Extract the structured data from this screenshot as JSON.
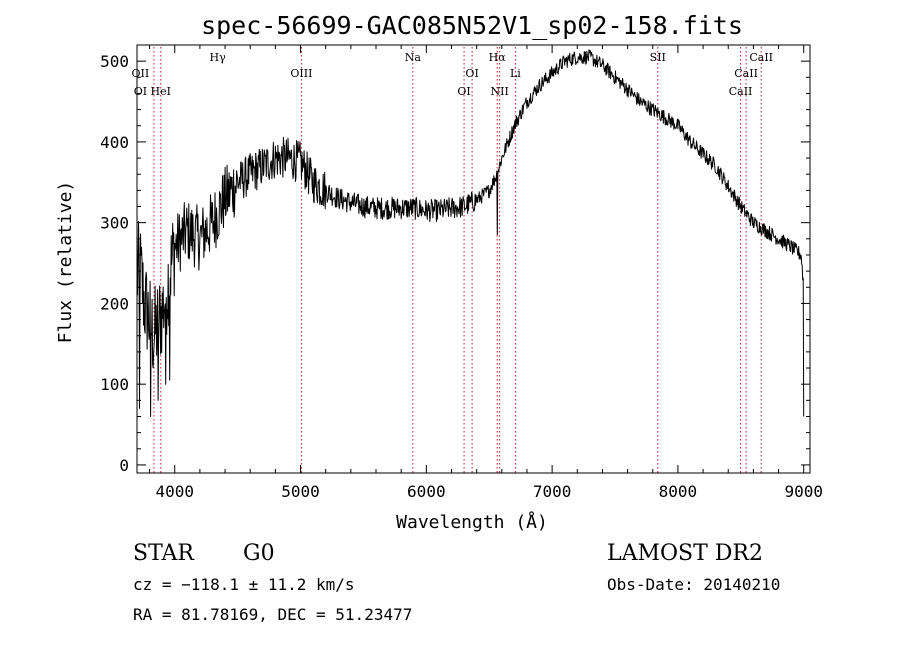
{
  "chart_data": {
    "type": "line",
    "title": "spec-56699-GAC085N52V1_sp02-158.fits",
    "xlabel": "Wavelength (Å)",
    "ylabel": "Flux (relative)",
    "xlim": [
      3700,
      9050
    ],
    "ylim": [
      -10,
      520
    ],
    "xticks": [
      4000,
      5000,
      6000,
      7000,
      8000,
      9000
    ],
    "yticks": [
      0,
      100,
      200,
      300,
      400,
      500
    ],
    "grid": false,
    "line_color": "#000000",
    "marker_color": "#b22222",
    "spectrum_anchors": {
      "x": [
        3700,
        3720,
        3760,
        3800,
        3830,
        3860,
        3900,
        3950,
        4000,
        4100,
        4200,
        4300,
        4400,
        4500,
        4600,
        4700,
        4800,
        4900,
        5000,
        5100,
        5200,
        5300,
        5400,
        5500,
        5600,
        5700,
        5800,
        5900,
        6000,
        6100,
        6200,
        6300,
        6400,
        6500,
        6560,
        6600,
        6650,
        6700,
        6800,
        6900,
        7000,
        7100,
        7200,
        7300,
        7400,
        7500,
        7600,
        7700,
        7800,
        7900,
        8000,
        8100,
        8200,
        8300,
        8400,
        8500,
        8600,
        8700,
        8800,
        8900,
        8980,
        9000
      ],
      "y": [
        230,
        250,
        200,
        180,
        160,
        170,
        190,
        230,
        270,
        290,
        280,
        300,
        330,
        350,
        360,
        370,
        380,
        380,
        375,
        350,
        340,
        330,
        325,
        320,
        318,
        318,
        318,
        318,
        315,
        315,
        318,
        320,
        328,
        340,
        360,
        380,
        400,
        420,
        450,
        470,
        485,
        500,
        505,
        505,
        495,
        480,
        465,
        450,
        440,
        430,
        420,
        400,
        385,
        370,
        345,
        320,
        300,
        290,
        280,
        270,
        260,
        220
      ]
    },
    "spikes": [
      {
        "x": 6565,
        "y": 285
      },
      {
        "x": 3720,
        "y": 70
      },
      {
        "x": 3810,
        "y": 60
      },
      {
        "x": 3870,
        "y": 80
      },
      {
        "x": 3930,
        "y": 100
      },
      {
        "x": 3960,
        "y": 105
      },
      {
        "x": 9000,
        "y": 60
      }
    ],
    "line_markers": [
      {
        "label": "Hγ",
        "x": 4341,
        "row": 0,
        "line": false
      },
      {
        "label": "OII",
        "x": 3727,
        "row": 1,
        "line": false
      },
      {
        "label": "OI",
        "x": 3727,
        "row": 2,
        "line": false
      },
      {
        "label": "HeI",
        "x": 3889,
        "row": 2,
        "line": true
      },
      {
        "label": "",
        "x": 3835,
        "row": 2,
        "line": true
      },
      {
        "label": "OIII",
        "x": 5007,
        "row": 1,
        "line": true
      },
      {
        "label": "Na",
        "x": 5893,
        "row": 0,
        "line": true
      },
      {
        "label": "OI",
        "x": 6364,
        "row": 1,
        "line": true
      },
      {
        "label": "OI",
        "x": 6300,
        "row": 2,
        "line": true
      },
      {
        "label": "Hα",
        "x": 6563,
        "row": 0,
        "line": true
      },
      {
        "label": "NII",
        "x": 6583,
        "row": 2,
        "line": true
      },
      {
        "label": "Li",
        "x": 6708,
        "row": 1,
        "line": true
      },
      {
        "label": "SII",
        "x": 7840,
        "row": 0,
        "line": true
      },
      {
        "label": "CaII",
        "x": 8662,
        "row": 0,
        "line": true
      },
      {
        "label": "CaII",
        "x": 8542,
        "row": 1,
        "line": true
      },
      {
        "label": "CaII",
        "x": 8498,
        "row": 2,
        "line": true
      }
    ]
  },
  "info": {
    "object_class": "STAR",
    "subclass": "G0",
    "survey": "LAMOST DR2",
    "cz": "cz = −118.1 ± 11.2 km/s",
    "obs_date": "Obs-Date: 20140210",
    "coords": "RA =  81.78169, DEC =  51.23477"
  }
}
